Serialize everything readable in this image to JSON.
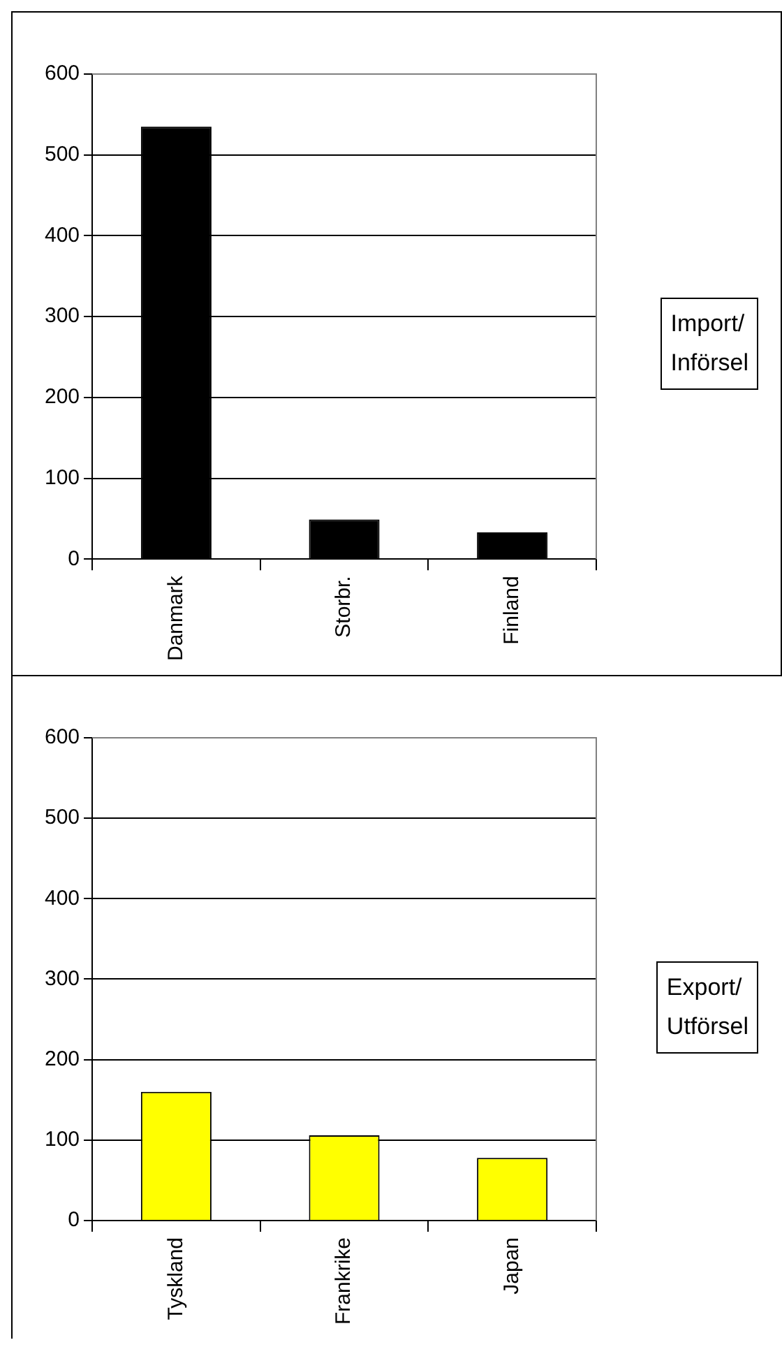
{
  "chart_data": [
    {
      "type": "bar",
      "categories": [
        "Danmark",
        "Storbr.",
        "Finland"
      ],
      "series": [
        {
          "name": "Import/\nInförsel",
          "color": "#000000",
          "values": [
            535,
            49,
            33
          ]
        }
      ],
      "ylim": [
        0,
        600
      ],
      "yticks": [
        0,
        100,
        200,
        300,
        400,
        500,
        600
      ],
      "grid": "y",
      "legend": "right"
    },
    {
      "type": "bar",
      "categories": [
        "Tyskland",
        "Frankrike",
        "Japan"
      ],
      "series": [
        {
          "name": "Export/\nUtförsel",
          "color": "#ffff00",
          "values": [
            160,
            106,
            78
          ]
        }
      ],
      "ylim": [
        0,
        600
      ],
      "yticks": [
        0,
        100,
        200,
        300,
        400,
        500,
        600
      ],
      "grid": "y",
      "legend": "right"
    }
  ]
}
